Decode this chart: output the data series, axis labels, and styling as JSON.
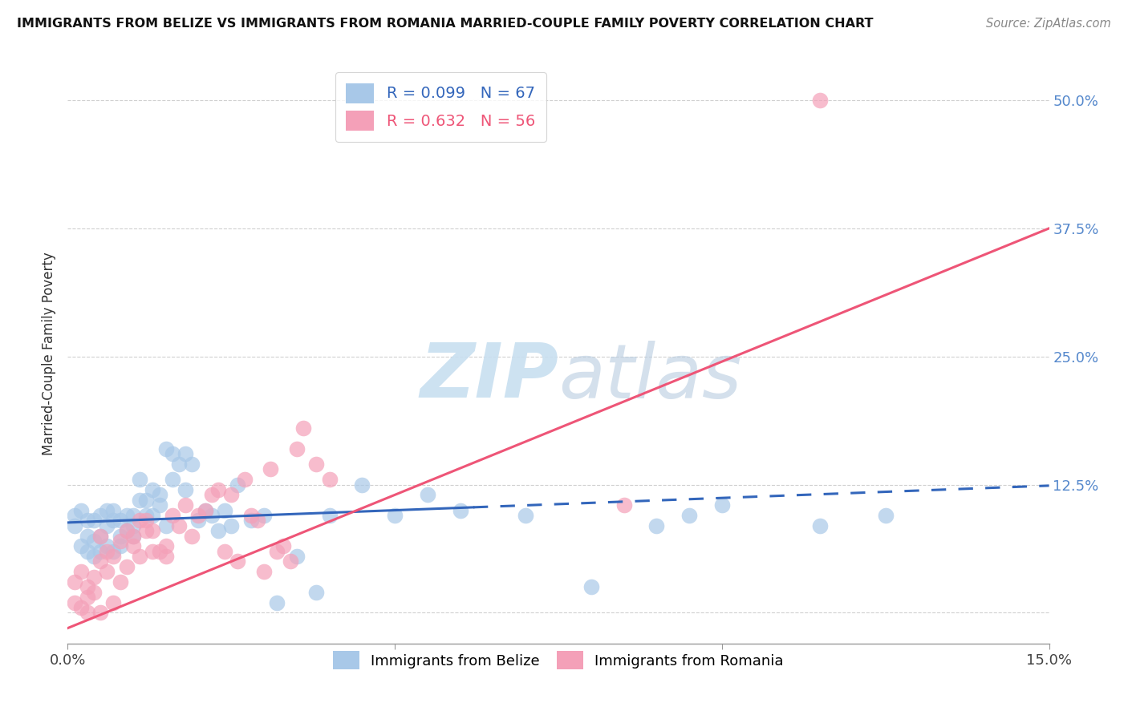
{
  "title": "IMMIGRANTS FROM BELIZE VS IMMIGRANTS FROM ROMANIA MARRIED-COUPLE FAMILY POVERTY CORRELATION CHART",
  "source": "Source: ZipAtlas.com",
  "ylabel": "Married-Couple Family Poverty",
  "xmin": 0.0,
  "xmax": 0.15,
  "ymin": -0.03,
  "ymax": 0.535,
  "yticks": [
    0.0,
    0.125,
    0.25,
    0.375,
    0.5
  ],
  "ytick_labels": [
    "",
    "12.5%",
    "25.0%",
    "37.5%",
    "50.0%"
  ],
  "xticks": [
    0.0,
    0.05,
    0.1,
    0.15
  ],
  "xtick_labels": [
    "0.0%",
    "",
    "",
    "15.0%"
  ],
  "legend_belize": "R = 0.099   N = 67",
  "legend_romania": "R = 0.632   N = 56",
  "color_belize": "#a8c8e8",
  "color_romania": "#f4a0b8",
  "line_color_belize": "#3366bb",
  "line_color_romania": "#ee5577",
  "watermark_zip": "ZIP",
  "watermark_atlas": "atlas",
  "belize_scatter_x": [
    0.001,
    0.001,
    0.002,
    0.002,
    0.003,
    0.003,
    0.003,
    0.004,
    0.004,
    0.004,
    0.005,
    0.005,
    0.005,
    0.006,
    0.006,
    0.006,
    0.007,
    0.007,
    0.007,
    0.008,
    0.008,
    0.008,
    0.009,
    0.009,
    0.01,
    0.01,
    0.01,
    0.011,
    0.011,
    0.012,
    0.012,
    0.013,
    0.013,
    0.014,
    0.014,
    0.015,
    0.015,
    0.016,
    0.016,
    0.017,
    0.018,
    0.018,
    0.019,
    0.02,
    0.021,
    0.022,
    0.023,
    0.024,
    0.025,
    0.026,
    0.028,
    0.03,
    0.032,
    0.035,
    0.038,
    0.04,
    0.045,
    0.05,
    0.055,
    0.06,
    0.07,
    0.08,
    0.09,
    0.095,
    0.1,
    0.115,
    0.125
  ],
  "belize_scatter_y": [
    0.085,
    0.095,
    0.1,
    0.065,
    0.09,
    0.06,
    0.075,
    0.09,
    0.055,
    0.07,
    0.095,
    0.075,
    0.06,
    0.1,
    0.085,
    0.065,
    0.1,
    0.09,
    0.06,
    0.09,
    0.075,
    0.065,
    0.095,
    0.08,
    0.095,
    0.085,
    0.075,
    0.11,
    0.13,
    0.11,
    0.095,
    0.12,
    0.095,
    0.115,
    0.105,
    0.085,
    0.16,
    0.13,
    0.155,
    0.145,
    0.12,
    0.155,
    0.145,
    0.09,
    0.1,
    0.095,
    0.08,
    0.1,
    0.085,
    0.125,
    0.09,
    0.095,
    0.01,
    0.055,
    0.02,
    0.095,
    0.125,
    0.095,
    0.115,
    0.1,
    0.095,
    0.025,
    0.085,
    0.095,
    0.105,
    0.085,
    0.095
  ],
  "romania_scatter_x": [
    0.001,
    0.001,
    0.002,
    0.002,
    0.003,
    0.003,
    0.003,
    0.004,
    0.004,
    0.005,
    0.005,
    0.005,
    0.006,
    0.006,
    0.007,
    0.007,
    0.008,
    0.008,
    0.009,
    0.009,
    0.01,
    0.01,
    0.011,
    0.011,
    0.012,
    0.012,
    0.013,
    0.013,
    0.014,
    0.015,
    0.015,
    0.016,
    0.017,
    0.018,
    0.019,
    0.02,
    0.021,
    0.022,
    0.023,
    0.024,
    0.025,
    0.026,
    0.027,
    0.028,
    0.029,
    0.03,
    0.031,
    0.032,
    0.033,
    0.034,
    0.035,
    0.036,
    0.038,
    0.04,
    0.085,
    0.115
  ],
  "romania_scatter_y": [
    0.03,
    0.01,
    0.04,
    0.005,
    0.025,
    0.015,
    0.0,
    0.035,
    0.02,
    0.05,
    0.075,
    0.0,
    0.06,
    0.04,
    0.055,
    0.01,
    0.07,
    0.03,
    0.08,
    0.045,
    0.075,
    0.065,
    0.09,
    0.055,
    0.09,
    0.08,
    0.08,
    0.06,
    0.06,
    0.065,
    0.055,
    0.095,
    0.085,
    0.105,
    0.075,
    0.095,
    0.1,
    0.115,
    0.12,
    0.06,
    0.115,
    0.05,
    0.13,
    0.095,
    0.09,
    0.04,
    0.14,
    0.06,
    0.065,
    0.05,
    0.16,
    0.18,
    0.145,
    0.13,
    0.105,
    0.5
  ],
  "belize_solid_xend": 0.062,
  "belize_line_x0": 0.0,
  "belize_line_x1": 0.15,
  "belize_line_y0": 0.088,
  "belize_line_y1": 0.124,
  "romania_line_x0": 0.0,
  "romania_line_x1": 0.15,
  "romania_line_y0": -0.015,
  "romania_line_y1": 0.375
}
